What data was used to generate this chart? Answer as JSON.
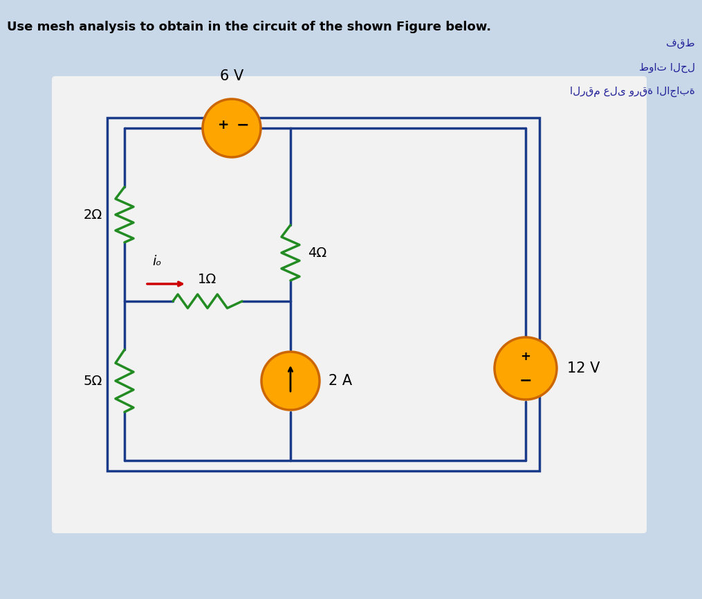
{
  "title": "Use mesh analysis to obtain in the circuit of the shown Figure below.",
  "arabic_text": [
    "فقط",
    "طوات الحل",
    "الرقم على ورقة الاجابة"
  ],
  "bg_color": "#c8d8e8",
  "circuit_bg": "#f0f0f0",
  "wire_color": "#1a3a8a",
  "resistor_color": "#228B22",
  "source_fill": "#FFA500",
  "source_edge": "#cc6600",
  "current_source_fill": "#FFA500",
  "current_source_edge": "#cc6600",
  "arrow_color": "#cc0000",
  "label_2ohm": "2Ω",
  "label_5ohm": "5Ω",
  "label_1ohm": "1Ω",
  "label_4ohm": "4Ω",
  "label_6v": "6 V",
  "label_12v": "12 V",
  "label_2a": "2 A",
  "label_io": "iₒ"
}
